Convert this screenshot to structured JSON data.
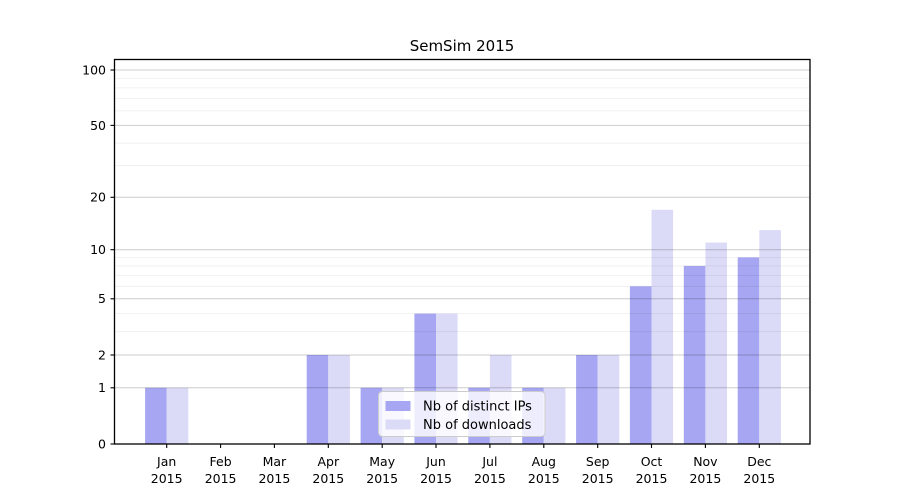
{
  "chart_data": {
    "type": "bar",
    "title": "SemSim 2015",
    "categories": [
      "Jan",
      "Feb",
      "Mar",
      "Apr",
      "May",
      "Jun",
      "Jul",
      "Aug",
      "Sep",
      "Oct",
      "Nov",
      "Dec"
    ],
    "category_year_line": "2015",
    "series": [
      {
        "name": "Nb of distinct IPs",
        "color": "#a6a6f2",
        "values": [
          1,
          0,
          0,
          2,
          1,
          4,
          1,
          1,
          2,
          6,
          8,
          9
        ]
      },
      {
        "name": "Nb of downloads",
        "color": "#dbdbf7",
        "values": [
          1,
          0,
          0,
          2,
          1,
          4,
          2,
          1,
          2,
          17,
          11,
          13
        ]
      }
    ],
    "yscale": "log1p",
    "ylim": [
      0,
      115
    ],
    "y_major_ticks": [
      0,
      1,
      2,
      5,
      10,
      20,
      50,
      100
    ],
    "y_minor_ticks": [
      3,
      4,
      6,
      7,
      8,
      9,
      30,
      40,
      60,
      70,
      80,
      90
    ],
    "xlabel": "",
    "ylabel": "",
    "grid": true,
    "legend_position": "lower center",
    "colors": {
      "spine": "#000000",
      "grid_major": "rgba(0,0,0,0.20)",
      "grid_minor": "rgba(0,0,0,0.07)",
      "legend_border": "#cccccc",
      "legend_bg": "rgba(255,255,255,0.8)"
    }
  }
}
